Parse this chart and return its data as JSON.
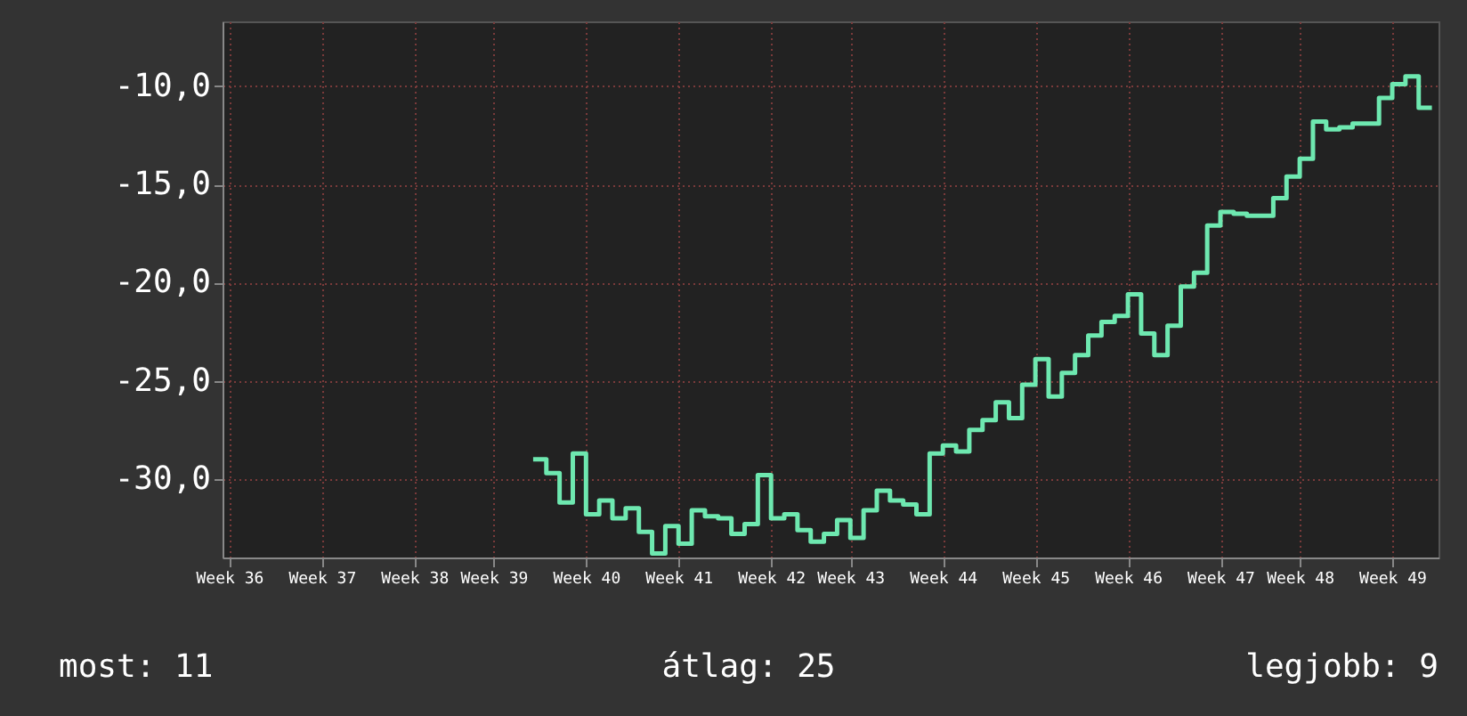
{
  "chart_data": {
    "type": "step",
    "categories": [
      "Week 36",
      null,
      null,
      null,
      null,
      null,
      null,
      "Week 37",
      null,
      null,
      null,
      null,
      null,
      null,
      "Week 38",
      null,
      null,
      null,
      null,
      null,
      "Week 39",
      null,
      null,
      null,
      null,
      null,
      null,
      "Week 40",
      null,
      null,
      null,
      null,
      null,
      null,
      "Week 41",
      null,
      null,
      null,
      null,
      null,
      null,
      "Week 42",
      null,
      null,
      null,
      null,
      null,
      "Week 43",
      null,
      null,
      null,
      null,
      null,
      null,
      "Week 44",
      null,
      null,
      null,
      null,
      null,
      null,
      "Week 45",
      null,
      null,
      null,
      null,
      null,
      null,
      "Week 46",
      null,
      null,
      null,
      null,
      null,
      null,
      "Week 47",
      null,
      null,
      null,
      null,
      null,
      "Week 48",
      null,
      null,
      null,
      null,
      null,
      null,
      "Week 49",
      null,
      null,
      null
    ],
    "series": [
      {
        "color": "#6ee8b0",
        "values": [
          null,
          null,
          null,
          null,
          null,
          null,
          null,
          null,
          null,
          null,
          null,
          null,
          null,
          null,
          null,
          null,
          null,
          null,
          null,
          null,
          null,
          null,
          null,
          -29.0,
          -29.7,
          -31.2,
          -28.7,
          -31.8,
          -31.1,
          -32.0,
          -31.5,
          -32.7,
          -33.8,
          -32.4,
          -33.3,
          -31.6,
          -31.9,
          -32.0,
          -32.8,
          -32.3,
          -29.8,
          -32.0,
          -31.8,
          -32.6,
          -33.2,
          -32.8,
          -32.1,
          -33.0,
          -31.6,
          -30.6,
          -31.1,
          -31.3,
          -31.8,
          -28.7,
          -28.3,
          -28.6,
          -27.5,
          -27.0,
          -26.1,
          -26.9,
          -25.2,
          -23.9,
          -25.8,
          -24.6,
          -23.7,
          -22.7,
          -22.0,
          -21.7,
          -20.6,
          -22.6,
          -23.7,
          -22.2,
          -20.2,
          -19.5,
          -17.1,
          -16.4,
          -16.5,
          -16.6,
          -16.6,
          -15.7,
          -14.6,
          -13.7,
          -11.8,
          -12.2,
          -12.1,
          -11.9,
          -11.9,
          -10.6,
          -9.9,
          -9.5,
          -11.1,
          -11.1
        ]
      }
    ],
    "ylim": [
      -34,
      -6.7
    ],
    "yticks": [
      {
        "value": -30,
        "label": "-30,0"
      },
      {
        "value": -25,
        "label": "-25,0"
      },
      {
        "value": -20,
        "label": "-20,0"
      },
      {
        "value": -15,
        "label": "-15,0"
      },
      {
        "value": -10,
        "label": "-10,0"
      }
    ],
    "grid": true,
    "line_style": "solid",
    "annotations": [
      "most: 11",
      "átlag: 25",
      "legjobb: 9"
    ]
  }
}
